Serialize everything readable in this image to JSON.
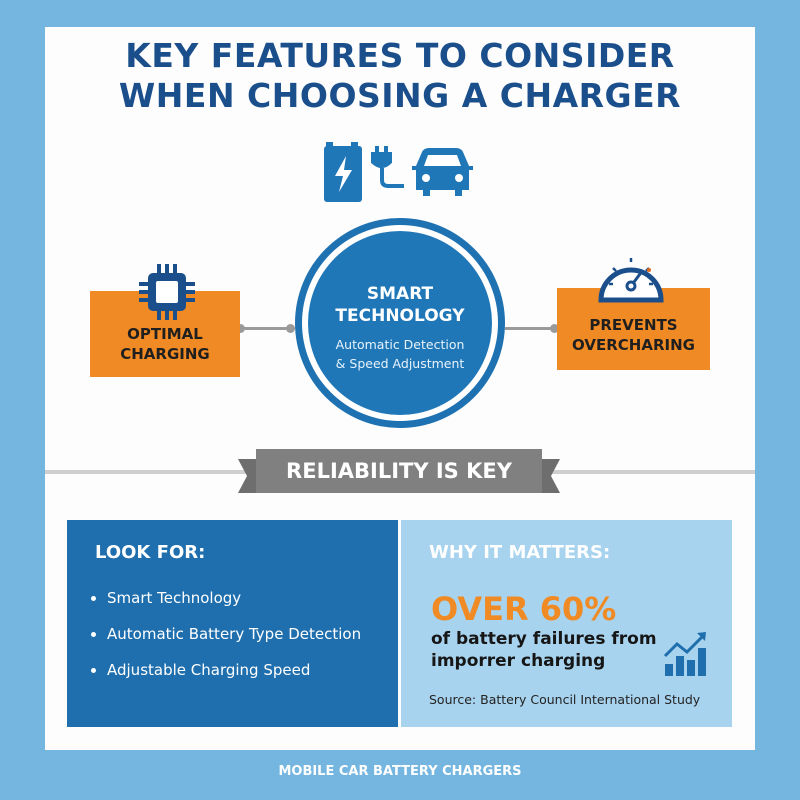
{
  "title": {
    "line1": "KEY FEATURES TO CONSIDER",
    "line2": "WHEN CHOOSING A CHARGER"
  },
  "colors": {
    "primary_blue": "#1f72b2",
    "title_blue": "#1b4f8c",
    "orange": "#f08a24",
    "light_blue": "#a8d3ee",
    "ribbon_gray": "#808080",
    "background": "#74b6e0"
  },
  "icons": [
    "battery-bolt-icon",
    "plug-icon",
    "car-icon",
    "chip-icon",
    "speedometer-icon",
    "trend-chart-icon"
  ],
  "center": {
    "title": "SMART TECHNOLOGY",
    "subtitle_line1": "Automatic Detection",
    "subtitle_line2": "& Speed Adjustment"
  },
  "left_box": {
    "line1": "OPTIMAL",
    "line2": "CHARGING"
  },
  "right_box": {
    "line1": "PREVENTS",
    "line2": "OVERCHARING"
  },
  "ribbon": "RELIABILITY IS KEY",
  "look_for": {
    "heading": "LOOK FOR:",
    "items": [
      "Smart Technology",
      "Automatic Battery Type Detection",
      "Adjustable Charging Speed"
    ]
  },
  "why": {
    "heading": "WHY IT MATTERS:",
    "stat": "OVER 60%",
    "line1": "of battery failures from",
    "line2": "imporrer charging",
    "source": "Source: Battery Council International Study"
  },
  "footer": "MOBILE CAR BATTERY CHARGERS"
}
